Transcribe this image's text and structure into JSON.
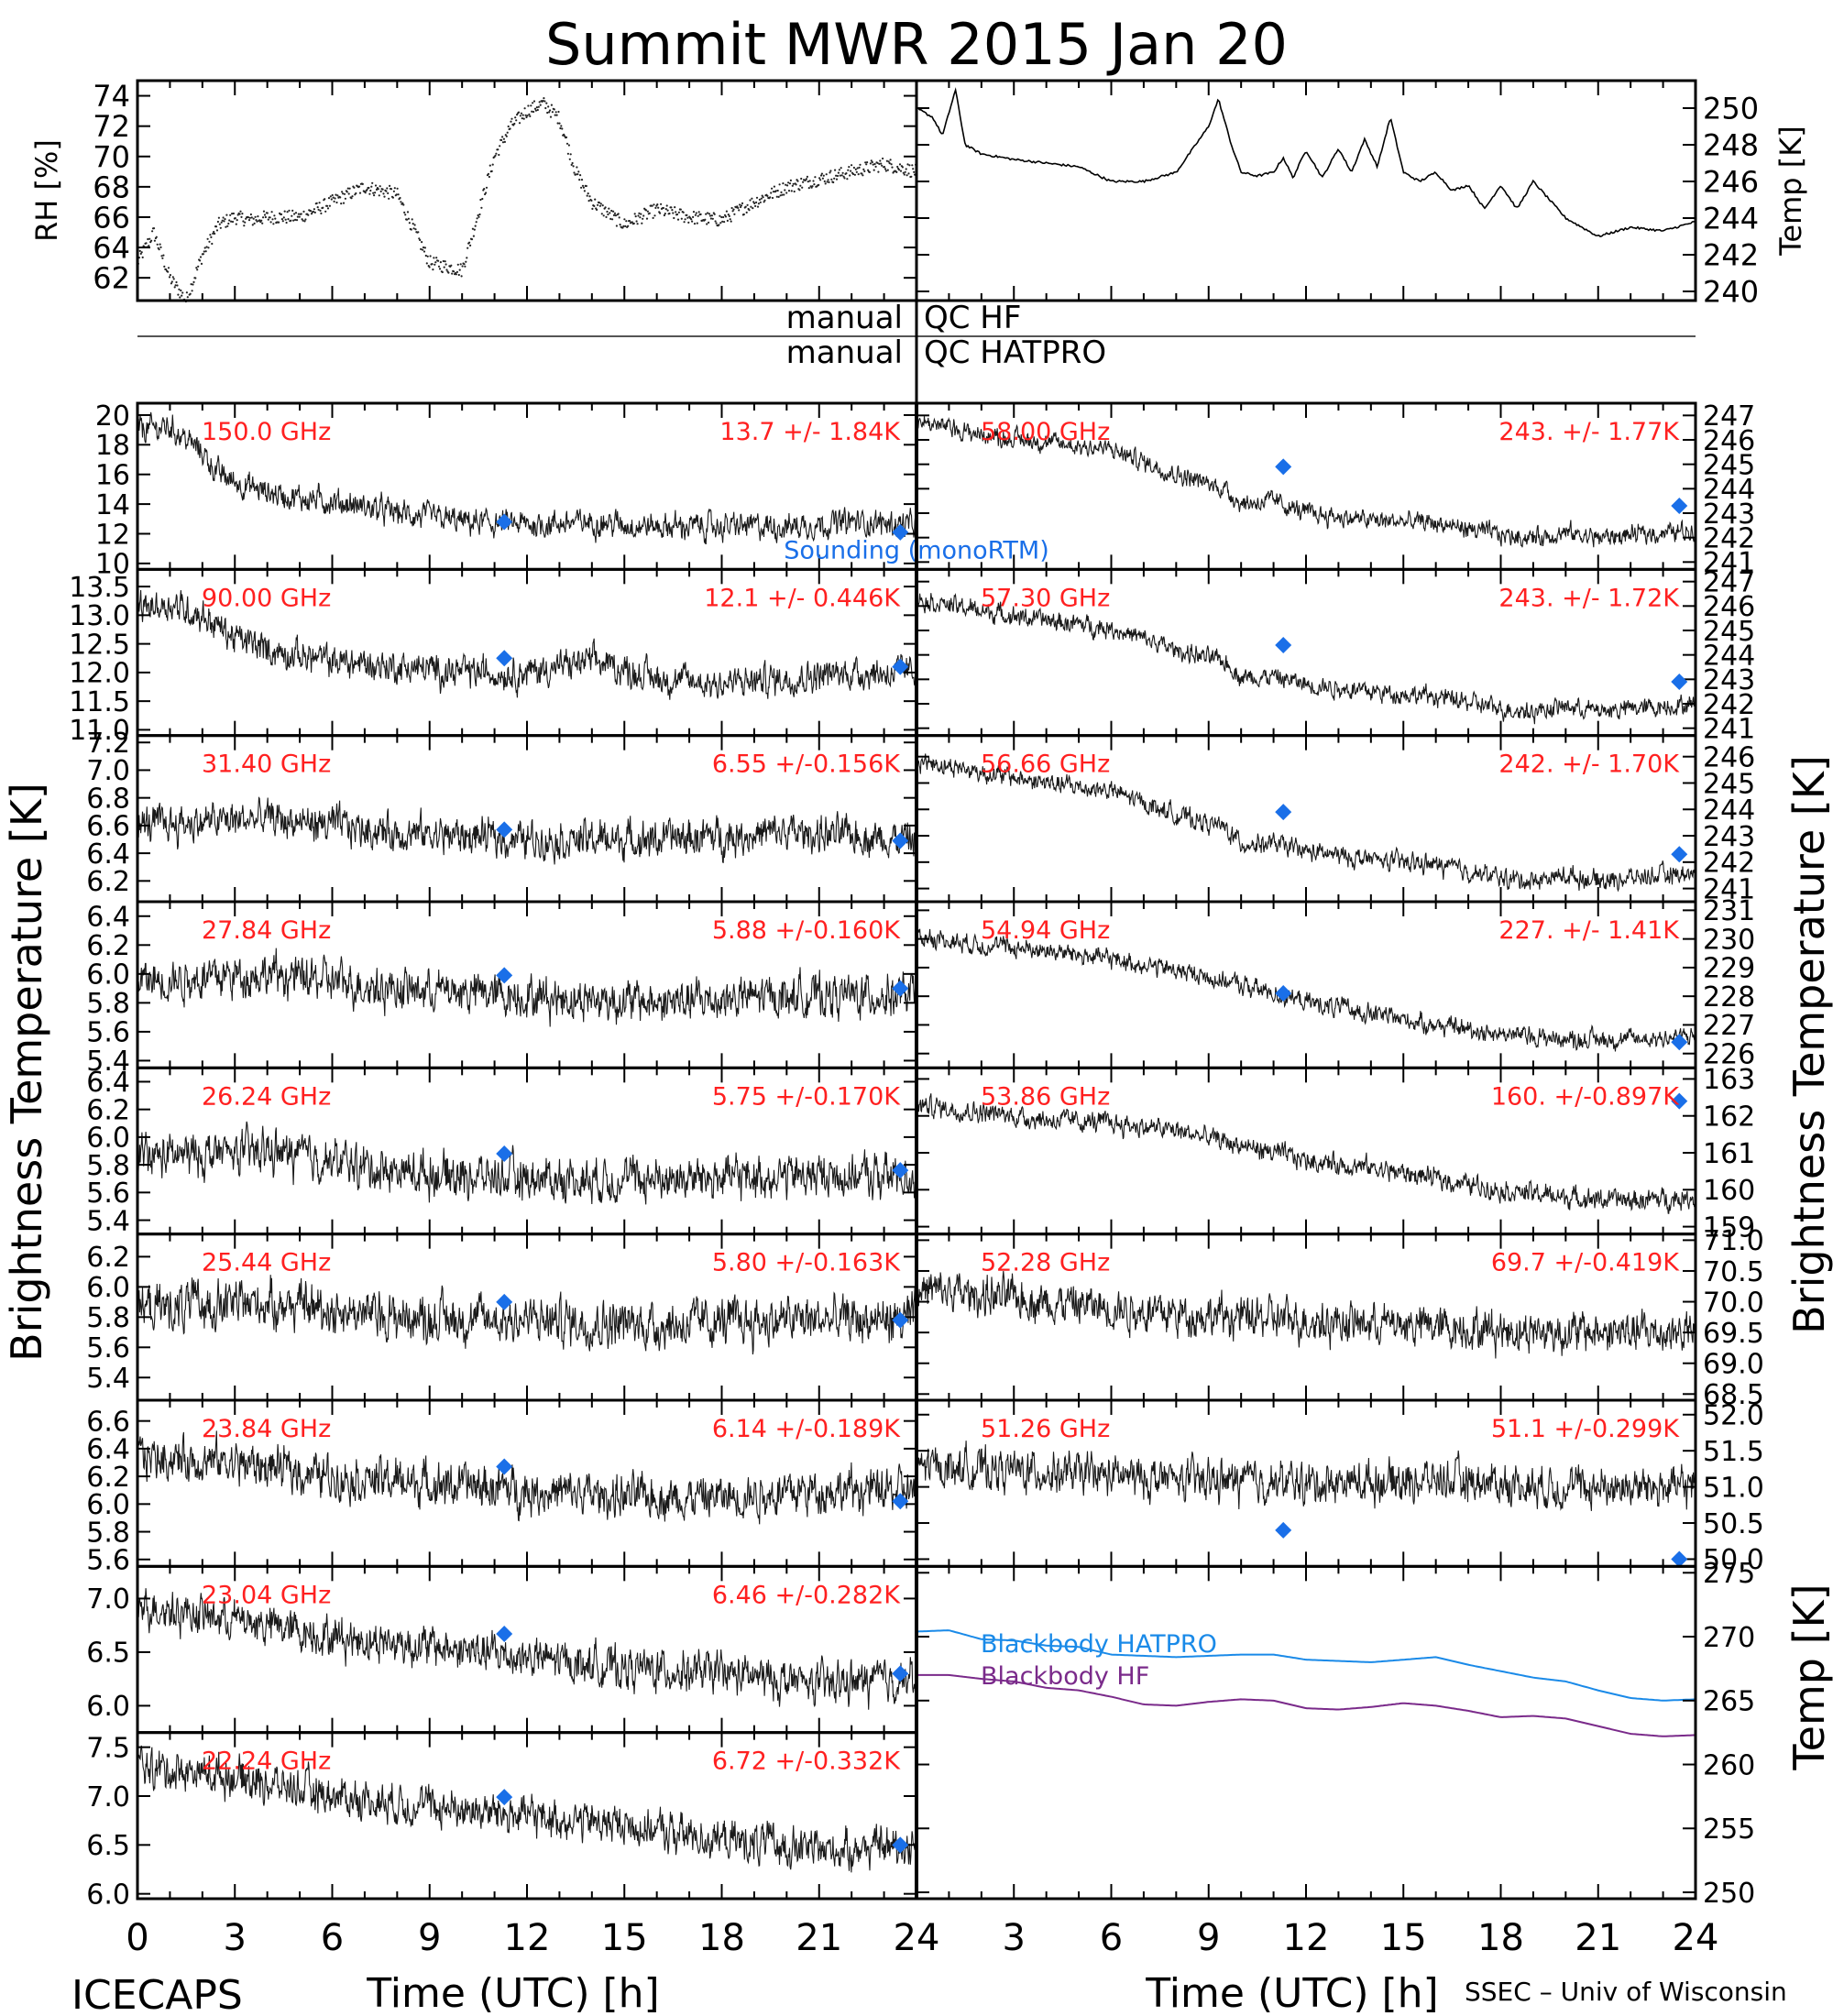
{
  "title": "Summit MWR 2015 Jan 20",
  "footer": {
    "left": "ICECAPS",
    "right": "SSEC – Univ of Wisconsin",
    "xlabel_left": "Time (UTC) [h]",
    "xlabel_right": "Time (UTC) [h]"
  },
  "side_labels": {
    "left": "Brightness Temperature [K]",
    "right": "Brightness Temperature [K]",
    "right_bottom": "Temp [K]"
  },
  "qc": {
    "row1_left": "manual",
    "row1_right": "QC HF",
    "row2_left": "manual",
    "row2_right": "QC HATPRO"
  },
  "sounding_label": "Sounding (monoRTM)",
  "colors": {
    "data": "#000000",
    "freq_label": "#ff2020",
    "sounding": "#1a6fe8",
    "bb_hatpro": "#1a8ae8",
    "bb_hf": "#7a2a8a"
  },
  "chart_data": [
    {
      "type": "scatter",
      "panel": "rh",
      "ylabel": "RH [%]",
      "x": [
        0,
        0.5,
        1,
        1.5,
        2,
        2.5,
        3,
        3.5,
        4,
        5,
        6,
        7,
        8,
        9,
        10,
        11,
        11.5,
        12,
        12.5,
        13,
        13.5,
        14,
        15,
        16,
        17,
        18,
        19,
        20,
        21,
        22,
        23,
        24
      ],
      "y": [
        63,
        65,
        62,
        60.5,
        63.5,
        65.5,
        66,
        65.8,
        66,
        66,
        67,
        68,
        67.5,
        63,
        62.5,
        70,
        72,
        73,
        73.5,
        72.5,
        69,
        67,
        65.5,
        66.5,
        66,
        65.8,
        67,
        68,
        68.5,
        69,
        69.5,
        69
      ],
      "xlim": [
        0,
        24
      ],
      "ylim": [
        60.5,
        75
      ],
      "yticks": [
        62,
        64,
        66,
        68,
        70,
        72,
        74
      ]
    },
    {
      "type": "line",
      "panel": "air_temp",
      "ylabel": "Temp [K]",
      "x": [
        0,
        0.5,
        0.8,
        1.2,
        1.5,
        2,
        3,
        5,
        6,
        7,
        8,
        9,
        9.3,
        9.7,
        10,
        10.5,
        11,
        11.3,
        11.6,
        12,
        12.5,
        13,
        13.4,
        13.8,
        14.2,
        14.6,
        15,
        15.5,
        16,
        16.5,
        17,
        17.5,
        18,
        18.5,
        19,
        19.5,
        20,
        21,
        22,
        23,
        24
      ],
      "y": [
        250,
        249.5,
        248.5,
        251,
        248,
        247.5,
        247.2,
        246.8,
        246,
        246,
        246.5,
        249,
        250.5,
        248,
        246.5,
        246.3,
        246.5,
        247.3,
        246.2,
        247.7,
        246.2,
        247.8,
        246.5,
        248.3,
        246.8,
        249.5,
        246.5,
        246,
        246.5,
        245.5,
        245.8,
        244.5,
        245.8,
        244.5,
        246,
        245,
        244,
        243,
        243.5,
        243.3,
        243.8
      ],
      "xlim": [
        0,
        24
      ],
      "ylim": [
        239.5,
        251.5
      ],
      "yticks": [
        240,
        242,
        244,
        246,
        248,
        250
      ]
    },
    {
      "type": "scatter",
      "panel": "tb",
      "column": "left",
      "freq": "150.0 GHz",
      "stat": "13.7 +/-  1.84K",
      "ylim": [
        9.6,
        20.8
      ],
      "yticks": [
        10,
        12,
        14,
        16,
        18,
        20
      ],
      "x": [
        0,
        1,
        2,
        2.5,
        3,
        4,
        5,
        6,
        8,
        10,
        12,
        14,
        16,
        18,
        20,
        22,
        24
      ],
      "y": [
        19,
        19.2,
        17.5,
        16,
        15.5,
        14.8,
        14.4,
        14.2,
        13.4,
        12.8,
        12.6,
        12.8,
        12.5,
        12.5,
        12.5,
        12.8,
        12.6
      ],
      "noise": 0.8,
      "sounding": [
        {
          "x": 11.3,
          "y": 12.8
        },
        {
          "x": 23.5,
          "y": 12.1
        }
      ]
    },
    {
      "type": "scatter",
      "panel": "tb",
      "column": "left",
      "freq": "90.00 GHz",
      "stat": "12.1 +/- 0.446K",
      "ylim": [
        10.9,
        13.8
      ],
      "yticks": [
        11.0,
        11.5,
        12.0,
        12.5,
        13.0,
        13.5
      ],
      "x": [
        0,
        1,
        2,
        3,
        4,
        6,
        8,
        10,
        12,
        14,
        16,
        18,
        20,
        22,
        24
      ],
      "y": [
        13.1,
        13.2,
        13.0,
        12.6,
        12.4,
        12.2,
        12.1,
        12.0,
        12.0,
        12.2,
        11.9,
        11.8,
        11.9,
        12.0,
        12.0
      ],
      "noise": 0.25,
      "sounding": [
        {
          "x": 11.3,
          "y": 12.25
        },
        {
          "x": 23.5,
          "y": 12.1
        }
      ]
    },
    {
      "type": "scatter",
      "panel": "tb",
      "column": "left",
      "freq": "31.40 GHz",
      "stat": "6.55 +/-0.156K",
      "ylim": [
        6.05,
        7.25
      ],
      "yticks": [
        6.2,
        6.4,
        6.6,
        6.8,
        7.0,
        7.2
      ],
      "x": [
        0,
        4,
        8,
        12,
        16,
        20,
        24
      ],
      "y": [
        6.6,
        6.65,
        6.55,
        6.5,
        6.5,
        6.55,
        6.5
      ],
      "noise": 0.12,
      "sounding": [
        {
          "x": 11.3,
          "y": 6.57
        },
        {
          "x": 23.5,
          "y": 6.49
        }
      ]
    },
    {
      "type": "scatter",
      "panel": "tb",
      "column": "left",
      "freq": "27.84 GHz",
      "stat": "5.88 +/-0.160K",
      "ylim": [
        5.35,
        6.5
      ],
      "yticks": [
        5.4,
        5.6,
        5.8,
        6.0,
        6.2,
        6.4
      ],
      "x": [
        0,
        4,
        8,
        12,
        16,
        20,
        24
      ],
      "y": [
        5.95,
        6.0,
        5.9,
        5.85,
        5.8,
        5.85,
        5.85
      ],
      "noise": 0.13,
      "sounding": [
        {
          "x": 11.3,
          "y": 5.99
        },
        {
          "x": 23.5,
          "y": 5.9
        }
      ]
    },
    {
      "type": "scatter",
      "panel": "tb",
      "column": "left",
      "freq": "26.24 GHz",
      "stat": "5.75 +/-0.170K",
      "ylim": [
        5.3,
        6.5
      ],
      "yticks": [
        5.4,
        5.6,
        5.8,
        6.0,
        6.2,
        6.4
      ],
      "x": [
        0,
        4,
        8,
        12,
        16,
        20,
        24
      ],
      "y": [
        5.85,
        5.9,
        5.75,
        5.7,
        5.7,
        5.72,
        5.72
      ],
      "noise": 0.14,
      "sounding": [
        {
          "x": 11.3,
          "y": 5.88
        },
        {
          "x": 23.5,
          "y": 5.76
        }
      ]
    },
    {
      "type": "scatter",
      "panel": "tb",
      "column": "left",
      "freq": "25.44 GHz",
      "stat": "5.80 +/-0.163K",
      "ylim": [
        5.25,
        6.35
      ],
      "yticks": [
        5.4,
        5.6,
        5.8,
        6.0,
        6.2
      ],
      "x": [
        0,
        4,
        8,
        12,
        16,
        20,
        24
      ],
      "y": [
        5.85,
        5.9,
        5.8,
        5.78,
        5.75,
        5.78,
        5.78
      ],
      "noise": 0.14,
      "sounding": [
        {
          "x": 11.3,
          "y": 5.9
        },
        {
          "x": 23.5,
          "y": 5.78
        }
      ]
    },
    {
      "type": "scatter",
      "panel": "tb",
      "column": "left",
      "freq": "23.84 GHz",
      "stat": "6.14 +/-0.189K",
      "ylim": [
        5.55,
        6.75
      ],
      "yticks": [
        5.6,
        5.8,
        6.0,
        6.2,
        6.4,
        6.6
      ],
      "x": [
        0,
        3,
        6,
        9,
        12,
        15,
        18,
        21,
        24
      ],
      "y": [
        6.35,
        6.3,
        6.2,
        6.15,
        6.1,
        6.05,
        6.05,
        6.1,
        6.1
      ],
      "noise": 0.14,
      "sounding": [
        {
          "x": 11.3,
          "y": 6.27
        },
        {
          "x": 23.5,
          "y": 6.02
        }
      ]
    },
    {
      "type": "scatter",
      "panel": "tb",
      "column": "left",
      "freq": "23.04 GHz",
      "stat": "6.46 +/-0.282K",
      "ylim": [
        5.75,
        7.3
      ],
      "yticks": [
        6.0,
        6.5,
        7.0
      ],
      "x": [
        0,
        3,
        6,
        9,
        12,
        15,
        18,
        21,
        24
      ],
      "y": [
        6.95,
        6.8,
        6.65,
        6.55,
        6.45,
        6.35,
        6.3,
        6.2,
        6.25
      ],
      "noise": 0.17,
      "sounding": [
        {
          "x": 11.3,
          "y": 6.67
        },
        {
          "x": 23.5,
          "y": 6.3
        }
      ]
    },
    {
      "type": "scatter",
      "panel": "tb",
      "column": "left",
      "freq": "22.24 GHz",
      "stat": "6.72 +/-0.332K",
      "ylim": [
        5.95,
        7.65
      ],
      "yticks": [
        6.0,
        6.5,
        7.0,
        7.5
      ],
      "x": [
        0,
        3,
        6,
        9,
        12,
        15,
        18,
        21,
        24
      ],
      "y": [
        7.3,
        7.2,
        7.0,
        6.9,
        6.8,
        6.7,
        6.55,
        6.45,
        6.5
      ],
      "noise": 0.18,
      "sounding": [
        {
          "x": 11.3,
          "y": 6.99
        },
        {
          "x": 23.5,
          "y": 6.5
        }
      ]
    },
    {
      "type": "scatter",
      "panel": "tb",
      "column": "right",
      "freq": "58.00 GHz",
      "stat": "243. +/- 1.77K",
      "ylim": [
        240.7,
        247.5
      ],
      "yticks": [
        241,
        242,
        243,
        244,
        245,
        246,
        247
      ],
      "x": [
        0,
        2,
        4,
        6,
        8,
        9.5,
        10,
        11,
        12,
        14,
        16,
        18,
        19,
        20,
        21,
        22,
        24
      ],
      "y": [
        246.8,
        246.2,
        245.9,
        245.6,
        244.6,
        244,
        243.4,
        243.5,
        243,
        242.7,
        242.6,
        242.1,
        242,
        242.2,
        242,
        242.1,
        242.3
      ],
      "noise": 0.35,
      "sounding": [
        {
          "x": 11.3,
          "y": 244.9
        },
        {
          "x": 23.5,
          "y": 243.3
        }
      ]
    },
    {
      "type": "scatter",
      "panel": "tb",
      "column": "right",
      "freq": "57.30 GHz",
      "stat": "243. +/- 1.72K",
      "ylim": [
        240.7,
        247.5
      ],
      "yticks": [
        241,
        242,
        243,
        244,
        245,
        246,
        247
      ],
      "x": [
        0,
        2,
        4,
        6,
        8,
        9.5,
        10,
        11,
        12,
        14,
        16,
        18,
        19,
        20,
        21,
        22,
        24
      ],
      "y": [
        246.3,
        245.8,
        245.4,
        245.1,
        244.2,
        243.7,
        243.1,
        243.1,
        242.8,
        242.5,
        242.3,
        241.8,
        241.7,
        241.9,
        241.7,
        241.8,
        242
      ],
      "noise": 0.35,
      "sounding": [
        {
          "x": 11.3,
          "y": 244.4
        },
        {
          "x": 23.5,
          "y": 242.9
        }
      ]
    },
    {
      "type": "scatter",
      "panel": "tb",
      "column": "right",
      "freq": "56.66 GHz",
      "stat": "242. +/- 1.70K",
      "ylim": [
        240.5,
        246.8
      ],
      "yticks": [
        241,
        242,
        243,
        244,
        245,
        246
      ],
      "x": [
        0,
        2,
        4,
        6,
        8,
        9.5,
        10,
        11,
        12,
        14,
        16,
        18,
        19,
        20,
        21,
        22,
        24
      ],
      "y": [
        245.9,
        245.4,
        245,
        244.7,
        243.8,
        243.3,
        242.7,
        242.7,
        242.4,
        242.1,
        241.9,
        241.4,
        241.3,
        241.5,
        241.3,
        241.4,
        241.6
      ],
      "noise": 0.33,
      "sounding": [
        {
          "x": 11.3,
          "y": 243.9
        },
        {
          "x": 23.5,
          "y": 242.3
        }
      ]
    },
    {
      "type": "scatter",
      "panel": "tb",
      "column": "right",
      "freq": "54.94 GHz",
      "stat": "227. +/- 1.41K",
      "ylim": [
        225.5,
        231.3
      ],
      "yticks": [
        226,
        227,
        228,
        229,
        230,
        231
      ],
      "x": [
        0,
        2,
        4,
        6,
        8,
        10,
        12,
        14,
        16,
        18,
        20,
        22,
        24
      ],
      "y": [
        230.1,
        229.8,
        229.6,
        229.3,
        228.9,
        228.4,
        227.8,
        227.4,
        227,
        226.7,
        226.5,
        226.5,
        226.6
      ],
      "noise": 0.3,
      "sounding": [
        {
          "x": 11.3,
          "y": 228.1
        },
        {
          "x": 23.5,
          "y": 226.4
        }
      ]
    },
    {
      "type": "scatter",
      "panel": "tb",
      "column": "right",
      "freq": "53.86 GHz",
      "stat": "160. +/-0.897K",
      "ylim": [
        158.8,
        163.3
      ],
      "yticks": [
        159,
        160,
        161,
        162,
        163
      ],
      "x": [
        0,
        2,
        4,
        6,
        8,
        10,
        12,
        14,
        16,
        18,
        20,
        22,
        24
      ],
      "y": [
        162.3,
        162.1,
        161.9,
        161.8,
        161.6,
        161.2,
        160.8,
        160.6,
        160.3,
        160,
        159.8,
        159.7,
        159.8
      ],
      "noise": 0.25,
      "sounding": [
        {
          "x": 11.3,
          "y": null
        },
        {
          "x": 23.5,
          "y": 162.4
        }
      ]
    },
    {
      "type": "scatter",
      "panel": "tb",
      "column": "right",
      "freq": "52.28 GHz",
      "stat": "69.7 +/-0.419K",
      "ylim": [
        68.4,
        71.1
      ],
      "yticks": [
        68.5,
        69.0,
        69.5,
        70.0,
        70.5,
        71.0
      ],
      "x": [
        0,
        4,
        8,
        12,
        16,
        20,
        24
      ],
      "y": [
        70.2,
        70.0,
        69.8,
        69.7,
        69.6,
        69.5,
        69.5
      ],
      "noise": 0.3,
      "sounding": []
    },
    {
      "type": "scatter",
      "panel": "tb",
      "column": "right",
      "freq": "51.26 GHz",
      "stat": "51.1 +/-0.299K",
      "ylim": [
        49.9,
        52.2
      ],
      "yticks": [
        50.0,
        50.5,
        51.0,
        51.5,
        52.0
      ],
      "x": [
        0,
        4,
        8,
        12,
        16,
        20,
        24
      ],
      "y": [
        51.3,
        51.2,
        51.1,
        51.05,
        51.1,
        51.0,
        51.0
      ],
      "noise": 0.25,
      "sounding": [
        {
          "x": 11.3,
          "y": 50.4
        },
        {
          "x": 23.5,
          "y": 50.0
        }
      ]
    },
    {
      "type": "line",
      "panel": "blackbody",
      "ylabel": "Temp [K]",
      "ylim": [
        249.5,
        275.5
      ],
      "yticks": [
        250,
        255,
        260,
        265,
        270,
        275
      ],
      "x": [
        0,
        1,
        2,
        3,
        4,
        5,
        6,
        7,
        8,
        9,
        10,
        11,
        12,
        13,
        14,
        15,
        16,
        17,
        18,
        19,
        20,
        21,
        22,
        23,
        24
      ],
      "series": [
        {
          "name": "Blackbody HATPRO",
          "values": [
            270.4,
            270.5,
            269.8,
            269.7,
            269.3,
            269.2,
            268.6,
            268.5,
            268.4,
            268.5,
            268.6,
            268.6,
            268.2,
            268.1,
            268.0,
            268.2,
            268.4,
            267.8,
            267.3,
            266.8,
            266.5,
            265.8,
            265.2,
            265.0,
            265.1
          ]
        },
        {
          "name": "Blackbody HF",
          "values": [
            267.0,
            267.0,
            266.7,
            266.5,
            266.0,
            265.8,
            265.3,
            264.7,
            264.6,
            264.9,
            265.1,
            265.0,
            264.4,
            264.3,
            264.5,
            264.8,
            264.6,
            264.2,
            263.7,
            263.8,
            263.6,
            263.0,
            262.4,
            262.2,
            262.3
          ]
        }
      ]
    }
  ],
  "xaxis": {
    "xlim": [
      0,
      24
    ],
    "tick_labels": [
      "0",
      "3",
      "6",
      "9",
      "12",
      "15",
      "18",
      "21",
      "24"
    ]
  }
}
